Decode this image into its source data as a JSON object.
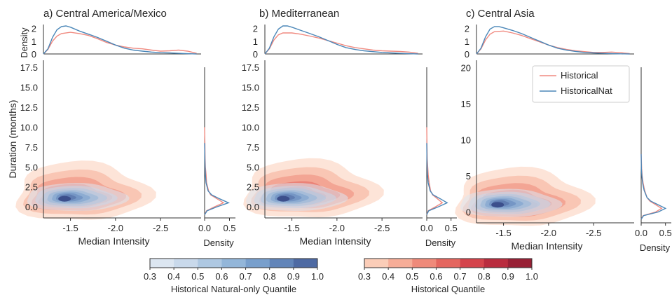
{
  "chart_data": [
    {
      "type": "scatter",
      "panel_label": "a) Central America/Mexico",
      "xlabel": "Median Intensity",
      "ylabel": "Duration (months)",
      "x_ticks": [
        "-1.5",
        "-2.0",
        "-2.5"
      ],
      "xlim": [
        -1.2,
        -2.95
      ],
      "y_ticks": [
        "0.0",
        "2.5",
        "5.0",
        "7.5",
        "10.0",
        "12.5",
        "15.0",
        "17.5"
      ],
      "ylim": [
        -1.4,
        18.4
      ],
      "marginal_x": {
        "ylabel": "Density",
        "ticks": [
          "0",
          "1",
          "2"
        ],
        "ylim": [
          0,
          2.2
        ]
      },
      "marginal_y": {
        "xlabel": "Density",
        "ticks": [
          "0.0",
          "0.5"
        ],
        "xlim": [
          0,
          0.62
        ]
      },
      "series": [
        {
          "name": "Historical",
          "kde_x": [
            [
              -1.2,
              0.0
            ],
            [
              -1.25,
              0.35
            ],
            [
              -1.3,
              1.0
            ],
            [
              -1.35,
              1.4
            ],
            [
              -1.4,
              1.6
            ],
            [
              -1.5,
              1.7
            ],
            [
              -1.6,
              1.6
            ],
            [
              -1.7,
              1.45
            ],
            [
              -1.8,
              1.2
            ],
            [
              -1.9,
              0.9
            ],
            [
              -2.0,
              0.7
            ],
            [
              -2.1,
              0.55
            ],
            [
              -2.2,
              0.45
            ],
            [
              -2.3,
              0.4
            ],
            [
              -2.4,
              0.3
            ],
            [
              -2.5,
              0.22
            ],
            [
              -2.6,
              0.25
            ],
            [
              -2.7,
              0.3
            ],
            [
              -2.8,
              0.22
            ],
            [
              -2.9,
              0.05
            ]
          ],
          "kde_y": [
            [
              -1.0,
              0.0
            ],
            [
              -0.5,
              0.04
            ],
            [
              0.0,
              0.2
            ],
            [
              0.5,
              0.38
            ],
            [
              1.0,
              0.25
            ],
            [
              1.5,
              0.12
            ],
            [
              2.0,
              0.08
            ],
            [
              3.0,
              0.04
            ],
            [
              4.0,
              0.03
            ],
            [
              5.0,
              0.015
            ],
            [
              6.0,
              0.01
            ],
            [
              8.0,
              0.005
            ],
            [
              10.0,
              0.0
            ]
          ],
          "contour_peak": [
            -1.48,
            1.3
          ]
        },
        {
          "name": "HistoricalNat",
          "kde_x": [
            [
              -1.2,
              0.0
            ],
            [
              -1.25,
              0.4
            ],
            [
              -1.3,
              1.3
            ],
            [
              -1.35,
              1.9
            ],
            [
              -1.4,
              2.15
            ],
            [
              -1.45,
              2.2
            ],
            [
              -1.5,
              2.1
            ],
            [
              -1.6,
              1.8
            ],
            [
              -1.7,
              1.55
            ],
            [
              -1.8,
              1.3
            ],
            [
              -1.9,
              1.0
            ],
            [
              -2.0,
              0.7
            ],
            [
              -2.1,
              0.45
            ],
            [
              -2.2,
              0.3
            ],
            [
              -2.3,
              0.22
            ],
            [
              -2.4,
              0.15
            ],
            [
              -2.5,
              0.1
            ],
            [
              -2.6,
              0.08
            ],
            [
              -2.7,
              0.05
            ],
            [
              -2.8,
              0.02
            ],
            [
              -2.9,
              0.0
            ]
          ],
          "kde_y": [
            [
              -1.0,
              0.0
            ],
            [
              -0.5,
              0.05
            ],
            [
              0.0,
              0.25
            ],
            [
              0.5,
              0.48
            ],
            [
              1.0,
              0.3
            ],
            [
              1.5,
              0.14
            ],
            [
              2.0,
              0.07
            ],
            [
              3.0,
              0.03
            ],
            [
              4.0,
              0.015
            ],
            [
              5.0,
              0.01
            ],
            [
              6.0,
              0.005
            ],
            [
              8.0,
              0.0
            ]
          ],
          "contour_peak": [
            -1.45,
            1.0
          ]
        }
      ]
    },
    {
      "type": "scatter",
      "panel_label": "b) Mediterranean",
      "xlabel": "Median Intensity",
      "ylabel": "",
      "x_ticks": [
        "-1.5",
        "-2.0",
        "-2.5"
      ],
      "xlim": [
        -1.2,
        -2.95
      ],
      "y_ticks": [
        "0.0",
        "2.5",
        "5.0",
        "7.5",
        "10.0",
        "12.5",
        "15.0",
        "17.5"
      ],
      "ylim": [
        -1.4,
        18.4
      ],
      "marginal_x": {
        "ylabel": "",
        "ticks": [
          "0",
          "1",
          "2"
        ],
        "ylim": [
          0,
          2.2
        ]
      },
      "marginal_y": {
        "xlabel": "Density",
        "ticks": [
          "0.0",
          "0.5"
        ],
        "xlim": [
          0,
          0.62
        ]
      },
      "series": [
        {
          "name": "Historical",
          "kde_x": [
            [
              -1.2,
              0.0
            ],
            [
              -1.25,
              0.4
            ],
            [
              -1.3,
              1.1
            ],
            [
              -1.35,
              1.5
            ],
            [
              -1.4,
              1.65
            ],
            [
              -1.5,
              1.65
            ],
            [
              -1.6,
              1.55
            ],
            [
              -1.7,
              1.4
            ],
            [
              -1.8,
              1.25
            ],
            [
              -1.9,
              1.05
            ],
            [
              -2.0,
              0.85
            ],
            [
              -2.1,
              0.65
            ],
            [
              -2.2,
              0.5
            ],
            [
              -2.3,
              0.4
            ],
            [
              -2.4,
              0.3
            ],
            [
              -2.5,
              0.25
            ],
            [
              -2.6,
              0.22
            ],
            [
              -2.7,
              0.2
            ],
            [
              -2.8,
              0.15
            ],
            [
              -2.9,
              0.05
            ]
          ],
          "kde_y": [
            [
              -1.0,
              0.0
            ],
            [
              -0.5,
              0.03
            ],
            [
              0.0,
              0.18
            ],
            [
              0.5,
              0.32
            ],
            [
              1.0,
              0.22
            ],
            [
              1.5,
              0.12
            ],
            [
              2.0,
              0.08
            ],
            [
              3.0,
              0.05
            ],
            [
              4.0,
              0.03
            ],
            [
              5.0,
              0.02
            ],
            [
              6.0,
              0.01
            ],
            [
              8.0,
              0.005
            ],
            [
              10.0,
              0.0
            ]
          ],
          "contour_peak": [
            -1.55,
            1.6
          ]
        },
        {
          "name": "HistoricalNat",
          "kde_x": [
            [
              -1.2,
              0.0
            ],
            [
              -1.25,
              0.45
            ],
            [
              -1.3,
              1.35
            ],
            [
              -1.35,
              1.95
            ],
            [
              -1.4,
              2.2
            ],
            [
              -1.45,
              2.2
            ],
            [
              -1.5,
              2.1
            ],
            [
              -1.6,
              1.85
            ],
            [
              -1.7,
              1.6
            ],
            [
              -1.8,
              1.35
            ],
            [
              -1.9,
              1.05
            ],
            [
              -2.0,
              0.75
            ],
            [
              -2.1,
              0.5
            ],
            [
              -2.2,
              0.35
            ],
            [
              -2.3,
              0.25
            ],
            [
              -2.4,
              0.18
            ],
            [
              -2.5,
              0.12
            ],
            [
              -2.6,
              0.08
            ],
            [
              -2.7,
              0.05
            ],
            [
              -2.8,
              0.02
            ],
            [
              -2.9,
              0.0
            ]
          ],
          "kde_y": [
            [
              -1.0,
              0.0
            ],
            [
              -0.5,
              0.04
            ],
            [
              0.0,
              0.24
            ],
            [
              0.5,
              0.42
            ],
            [
              1.0,
              0.28
            ],
            [
              1.5,
              0.13
            ],
            [
              2.0,
              0.07
            ],
            [
              3.0,
              0.03
            ],
            [
              4.0,
              0.015
            ],
            [
              5.0,
              0.008
            ],
            [
              6.0,
              0.004
            ],
            [
              8.0,
              0.0
            ]
          ],
          "contour_peak": [
            -1.42,
            1.0
          ]
        }
      ]
    },
    {
      "type": "scatter",
      "panel_label": "c) Central Asia",
      "xlabel": "Median Intensity",
      "ylabel": "",
      "x_ticks": [
        "-1.5",
        "-2.0",
        "-2.5"
      ],
      "xlim": [
        -1.2,
        -2.95
      ],
      "y_ticks": [
        "0",
        "5",
        "10",
        "15",
        "20"
      ],
      "ylim": [
        -1.5,
        21.0
      ],
      "marginal_x": {
        "ylabel": "",
        "ticks": [
          "0",
          "1",
          "2"
        ],
        "ylim": [
          0,
          2.2
        ]
      },
      "marginal_y": {
        "xlabel": "Density",
        "ticks": [
          "0.0",
          "0.5"
        ],
        "xlim": [
          0,
          0.62
        ]
      },
      "legend": {
        "position": "top-right",
        "entries": [
          "Historical",
          "HistoricalNat"
        ]
      },
      "series": [
        {
          "name": "Historical",
          "kde_x": [
            [
              -1.2,
              0.0
            ],
            [
              -1.25,
              0.4
            ],
            [
              -1.3,
              1.1
            ],
            [
              -1.35,
              1.55
            ],
            [
              -1.4,
              1.75
            ],
            [
              -1.5,
              1.8
            ],
            [
              -1.6,
              1.65
            ],
            [
              -1.7,
              1.45
            ],
            [
              -1.8,
              1.2
            ],
            [
              -1.9,
              0.95
            ],
            [
              -2.0,
              0.7
            ],
            [
              -2.1,
              0.5
            ],
            [
              -2.2,
              0.35
            ],
            [
              -2.3,
              0.25
            ],
            [
              -2.4,
              0.18
            ],
            [
              -2.5,
              0.12
            ],
            [
              -2.6,
              0.12
            ],
            [
              -2.7,
              0.15
            ],
            [
              -2.8,
              0.1
            ],
            [
              -2.9,
              0.03
            ]
          ],
          "kde_y": [
            [
              -1.0,
              0.0
            ],
            [
              -0.5,
              0.04
            ],
            [
              0.0,
              0.3
            ],
            [
              0.5,
              0.42
            ],
            [
              1.0,
              0.3
            ],
            [
              1.5,
              0.18
            ],
            [
              2.0,
              0.12
            ],
            [
              3.0,
              0.07
            ],
            [
              4.0,
              0.04
            ],
            [
              5.0,
              0.02
            ],
            [
              6.0,
              0.01
            ],
            [
              8.0,
              0.0
            ]
          ],
          "contour_peak": [
            -1.55,
            1.3
          ]
        },
        {
          "name": "HistoricalNat",
          "kde_x": [
            [
              -1.2,
              0.0
            ],
            [
              -1.25,
              0.45
            ],
            [
              -1.3,
              1.35
            ],
            [
              -1.35,
              1.95
            ],
            [
              -1.4,
              2.15
            ],
            [
              -1.45,
              2.15
            ],
            [
              -1.5,
              2.05
            ],
            [
              -1.6,
              1.85
            ],
            [
              -1.7,
              1.6
            ],
            [
              -1.8,
              1.3
            ],
            [
              -1.9,
              1.0
            ],
            [
              -2.0,
              0.7
            ],
            [
              -2.1,
              0.45
            ],
            [
              -2.2,
              0.3
            ],
            [
              -2.3,
              0.2
            ],
            [
              -2.4,
              0.12
            ],
            [
              -2.5,
              0.08
            ],
            [
              -2.6,
              0.05
            ],
            [
              -2.7,
              0.03
            ],
            [
              -2.8,
              0.01
            ],
            [
              -2.9,
              0.0
            ]
          ],
          "kde_y": [
            [
              -1.0,
              0.0
            ],
            [
              -0.5,
              0.05
            ],
            [
              0.0,
              0.35
            ],
            [
              0.5,
              0.5
            ],
            [
              1.0,
              0.35
            ],
            [
              1.5,
              0.2
            ],
            [
              2.0,
              0.12
            ],
            [
              3.0,
              0.06
            ],
            [
              4.0,
              0.03
            ],
            [
              5.0,
              0.015
            ],
            [
              6.0,
              0.005
            ],
            [
              8.0,
              0.0
            ]
          ],
          "contour_peak": [
            -1.45,
            1.0
          ]
        }
      ]
    }
  ],
  "colorbars": [
    {
      "label": "Historical Natural-only Quantile",
      "ticks": [
        "0.3",
        "0.4",
        "0.5",
        "0.6",
        "0.7",
        "0.8",
        "0.9",
        "1.0"
      ],
      "colors": [
        "#dce6f1",
        "#c9d9eb",
        "#aec8e2",
        "#93b6d9",
        "#789fcc",
        "#6285b9",
        "#4e6aa3"
      ]
    },
    {
      "label": "Historical Quantile",
      "ticks": [
        "0.3",
        "0.4",
        "0.5",
        "0.6",
        "0.7",
        "0.8",
        "0.9",
        "1.0"
      ],
      "colors": [
        "#fbcdb8",
        "#f6ad98",
        "#ef8a7a",
        "#e4665f",
        "#d4434b",
        "#b92c3e",
        "#982035"
      ]
    }
  ],
  "colors": {
    "historical": "#f08a80",
    "historical_nat": "#4b87b8",
    "hist_fill": "#fbd5c4",
    "nat_core": "#3c4f8c"
  }
}
